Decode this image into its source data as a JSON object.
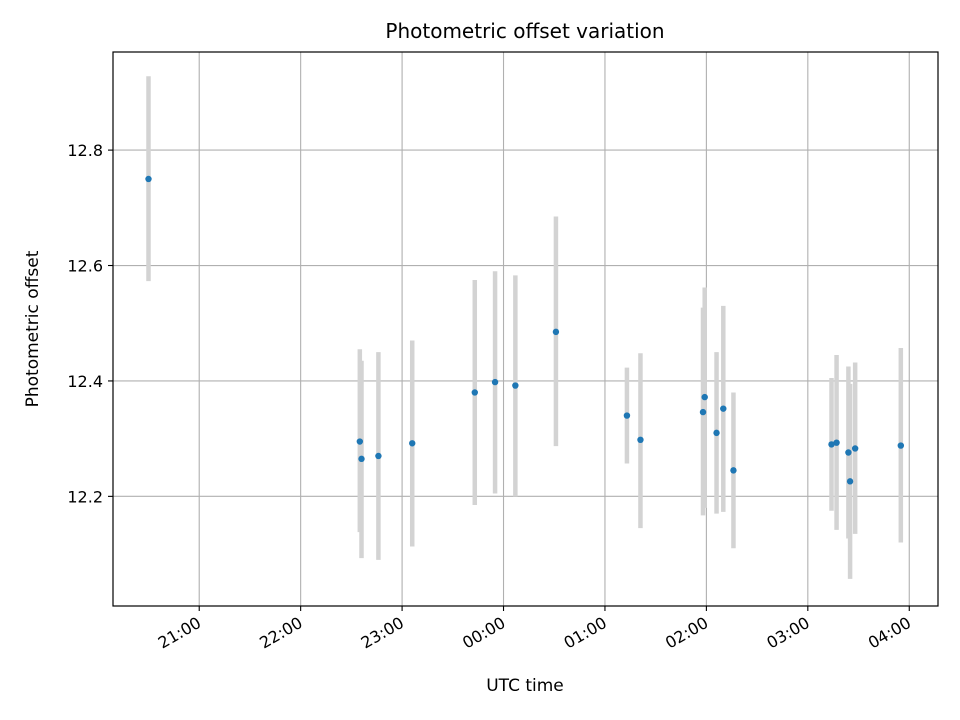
{
  "chart_data": {
    "type": "scatter",
    "title": "Photometric offset variation",
    "xlabel": "UTC time",
    "ylabel": "Photometric offset",
    "grid": true,
    "legend": "none",
    "marker_color": "#1f77b4",
    "errorbar_color": "#d3d3d3",
    "x_ticks": [
      "21:00",
      "22:00",
      "23:00",
      "00:00",
      "01:00",
      "02:00",
      "03:00",
      "04:00"
    ],
    "y_ticks": [
      "12.2",
      "12.4",
      "12.6",
      "12.8"
    ],
    "xlim": [
      "20:09",
      "04:17"
    ],
    "ylim": [
      12.01,
      12.97
    ],
    "series": [
      {
        "points": [
          {
            "x": "20:30",
            "y": 12.75,
            "ylow": 12.573,
            "yhigh": 12.928
          },
          {
            "x": "22:35",
            "y": 12.295,
            "ylow": 12.138,
            "yhigh": 12.455
          },
          {
            "x": "22:36",
            "y": 12.265,
            "ylow": 12.093,
            "yhigh": 12.435
          },
          {
            "x": "22:46",
            "y": 12.27,
            "ylow": 12.09,
            "yhigh": 12.45
          },
          {
            "x": "23:06",
            "y": 12.292,
            "ylow": 12.113,
            "yhigh": 12.47
          },
          {
            "x": "23:43",
            "y": 12.38,
            "ylow": 12.185,
            "yhigh": 12.575
          },
          {
            "x": "23:55",
            "y": 12.398,
            "ylow": 12.205,
            "yhigh": 12.59
          },
          {
            "x": "00:07",
            "y": 12.392,
            "ylow": 12.2,
            "yhigh": 12.583
          },
          {
            "x": "00:31",
            "y": 12.485,
            "ylow": 12.287,
            "yhigh": 12.685
          },
          {
            "x": "01:13",
            "y": 12.34,
            "ylow": 12.257,
            "yhigh": 12.423
          },
          {
            "x": "01:21",
            "y": 12.298,
            "ylow": 12.145,
            "yhigh": 12.448
          },
          {
            "x": "01:58",
            "y": 12.346,
            "ylow": 12.167,
            "yhigh": 12.527
          },
          {
            "x": "01:59",
            "y": 12.372,
            "ylow": 12.18,
            "yhigh": 12.562
          },
          {
            "x": "02:06",
            "y": 12.31,
            "ylow": 12.17,
            "yhigh": 12.45
          },
          {
            "x": "02:10",
            "y": 12.352,
            "ylow": 12.173,
            "yhigh": 12.53
          },
          {
            "x": "02:16",
            "y": 12.245,
            "ylow": 12.11,
            "yhigh": 12.38
          },
          {
            "x": "03:14",
            "y": 12.29,
            "ylow": 12.175,
            "yhigh": 12.405
          },
          {
            "x": "03:17",
            "y": 12.293,
            "ylow": 12.142,
            "yhigh": 12.445
          },
          {
            "x": "03:24",
            "y": 12.276,
            "ylow": 12.127,
            "yhigh": 12.425
          },
          {
            "x": "03:25",
            "y": 12.226,
            "ylow": 12.057,
            "yhigh": 12.395
          },
          {
            "x": "03:28",
            "y": 12.283,
            "ylow": 12.135,
            "yhigh": 12.432
          },
          {
            "x": "03:55",
            "y": 12.288,
            "ylow": 12.12,
            "yhigh": 12.457
          }
        ]
      }
    ]
  }
}
